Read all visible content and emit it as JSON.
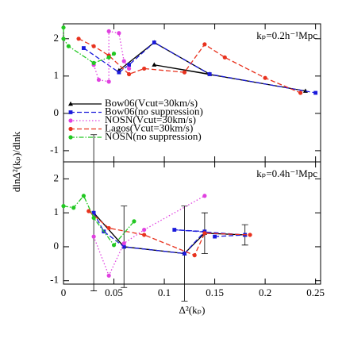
{
  "chart_data": [
    {
      "type": "line",
      "annotation": "kₚ=0.2h⁻¹Mpc",
      "ylabel": "dlnΔ²(kₚ)/dlnk",
      "xlim": [
        0,
        0.255
      ],
      "ylim": [
        -1.3,
        2.4
      ],
      "xticks": [
        0,
        0.05,
        0.1,
        0.15,
        0.2,
        0.25
      ],
      "yticks": [
        -1,
        0,
        1,
        2
      ],
      "legend": "left",
      "series": [
        {
          "name": "Bow06(Vcut=30km/s)",
          "color": "#000000",
          "linestyle": "solid",
          "marker": "triangle",
          "x": [
            0.055,
            0.09,
            0.145,
            0.09,
            0.24
          ],
          "values": [
            1.15,
            1.9,
            1.05,
            1.3,
            0.6
          ]
        },
        {
          "name": "Bow06(no suppression)",
          "color": "#1a1adb",
          "linestyle": "dashed",
          "marker": "square",
          "x": [
            0.02,
            0.055,
            0.065,
            0.09,
            0.145,
            0.25
          ],
          "values": [
            1.75,
            1.1,
            1.3,
            1.9,
            1.05,
            0.55
          ]
        },
        {
          "name": "NOSN(Vcut=30km/s)",
          "color": "#e040e0",
          "linestyle": "dotted",
          "marker": "circle",
          "x": [
            0.03,
            0.035,
            0.045,
            0.045,
            0.055,
            0.06,
            0.065
          ],
          "values": [
            1.3,
            0.9,
            0.85,
            2.2,
            2.15,
            1.4,
            1.2
          ]
        },
        {
          "name": "Lagos(Vcut=30km/s)",
          "color": "#e8321e",
          "linestyle": "dashed",
          "marker": "circle",
          "x": [
            0.015,
            0.03,
            0.045,
            0.065,
            0.08,
            0.12,
            0.14,
            0.16,
            0.2,
            0.235
          ],
          "values": [
            2.0,
            1.8,
            1.55,
            1.05,
            1.2,
            1.1,
            1.85,
            1.5,
            0.95,
            0.55
          ]
        },
        {
          "name": "NOSN(no suppression)",
          "color": "#22c822",
          "linestyle": "dashdot",
          "marker": "circle",
          "x": [
            0,
            0,
            0.005,
            0.03,
            0.045,
            0.05
          ],
          "values": [
            2.3,
            2.0,
            1.8,
            1.35,
            1.5,
            1.6
          ]
        }
      ]
    },
    {
      "type": "line",
      "annotation": "kₚ=0.4h⁻¹Mpc",
      "xlabel": "Δ²(kₚ)",
      "xlim": [
        0,
        0.255
      ],
      "ylim": [
        -1.1,
        2.5
      ],
      "xticks": [
        0,
        0.05,
        0.1,
        0.15,
        0.2,
        0.25
      ],
      "yticks": [
        -1,
        0,
        1,
        2
      ],
      "series": [
        {
          "color": "#000000",
          "linestyle": "solid",
          "marker": "triangle",
          "x": [
            0.03,
            0.06,
            0.12,
            0.14,
            0.18
          ],
          "values": [
            1.0,
            0.0,
            -0.2,
            0.4,
            0.35
          ],
          "errors": [
            2.3,
            1.2,
            1.4,
            0.6,
            0.3
          ]
        },
        {
          "color": "#1a1adb",
          "linestyle": "dashed",
          "marker": "square",
          "x": [
            0.03,
            0.04,
            0.06,
            0.12,
            0.14,
            0.11,
            0.18,
            0.15
          ],
          "values": [
            1.0,
            0.45,
            0.0,
            -0.2,
            0.45,
            0.5,
            0.35,
            0.3
          ]
        },
        {
          "color": "#e040e0",
          "linestyle": "dotted",
          "marker": "circle",
          "x": [
            0.03,
            0.045,
            0.06,
            0.08,
            0.14
          ],
          "values": [
            0.3,
            -0.85,
            0.1,
            0.5,
            1.5
          ]
        },
        {
          "color": "#e8321e",
          "linestyle": "dashed",
          "marker": "circle",
          "x": [
            0.025,
            0.045,
            0.08,
            0.13,
            0.14,
            0.185
          ],
          "values": [
            1.05,
            0.55,
            0.35,
            -0.25,
            0.4,
            0.35
          ]
        },
        {
          "color": "#22c822",
          "linestyle": "dashdot",
          "marker": "circle",
          "x": [
            0,
            0.01,
            0.02,
            0.03,
            0.05,
            0.07
          ],
          "values": [
            1.2,
            1.15,
            1.5,
            0.85,
            0.05,
            0.75
          ]
        }
      ]
    }
  ]
}
